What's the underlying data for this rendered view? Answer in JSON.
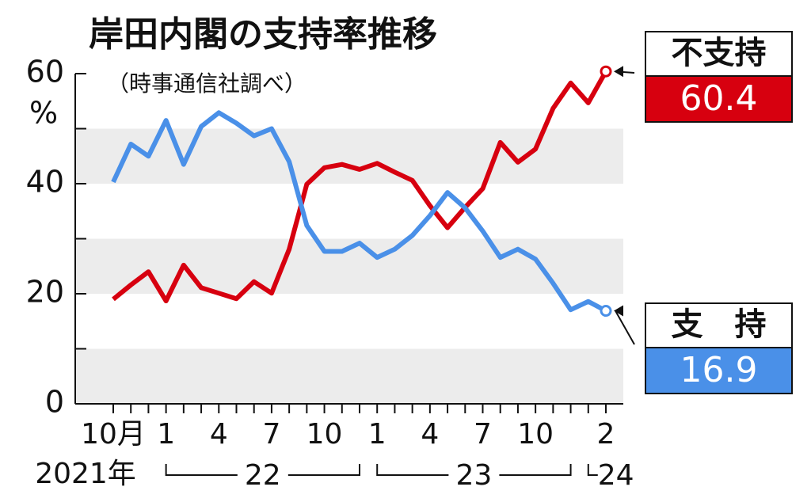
{
  "chart_data": {
    "type": "line",
    "title": "岸田内閣の支持率推移",
    "subtitle": "（時事通信社調べ）",
    "y_unit": "%",
    "categories": [
      "10月",
      null,
      null,
      "1",
      null,
      null,
      "4",
      null,
      null,
      "7",
      null,
      null,
      "10",
      null,
      null,
      "1",
      null,
      null,
      "4",
      null,
      null,
      "7",
      null,
      null,
      "10",
      null,
      null,
      null,
      "2"
    ],
    "year_labels": [
      "2021年",
      "22",
      "23",
      "24"
    ],
    "series": [
      {
        "name": "不支持",
        "color": "#d7000f",
        "values": [
          19.0,
          21.6,
          24.0,
          18.7,
          25.2,
          21.1,
          20.1,
          19.1,
          22.2,
          20.1,
          28.1,
          39.9,
          42.9,
          43.5,
          42.6,
          43.7,
          42.1,
          40.6,
          36.0,
          32.0,
          35.7,
          39.1,
          47.5,
          43.9,
          46.3,
          53.7,
          58.3,
          54.7,
          60.4
        ]
      },
      {
        "name": "支　持",
        "color": "#4a90e8",
        "values": [
          40.3,
          47.2,
          45.0,
          51.5,
          43.5,
          50.4,
          52.9,
          51.0,
          48.7,
          50.0,
          44.0,
          32.4,
          27.7,
          27.7,
          29.2,
          26.6,
          28.1,
          30.6,
          34.2,
          38.4,
          35.6,
          31.4,
          26.6,
          28.1,
          26.3,
          21.9,
          17.1,
          18.6,
          16.9
        ]
      }
    ],
    "ylim": [
      0,
      60
    ],
    "yticks": [
      0,
      20,
      40,
      60
    ],
    "minor_yticks": [
      10,
      30,
      50
    ],
    "bands": [
      [
        0,
        10
      ],
      [
        20,
        30
      ],
      [
        40,
        50
      ]
    ],
    "band_color": "#ececec"
  }
}
